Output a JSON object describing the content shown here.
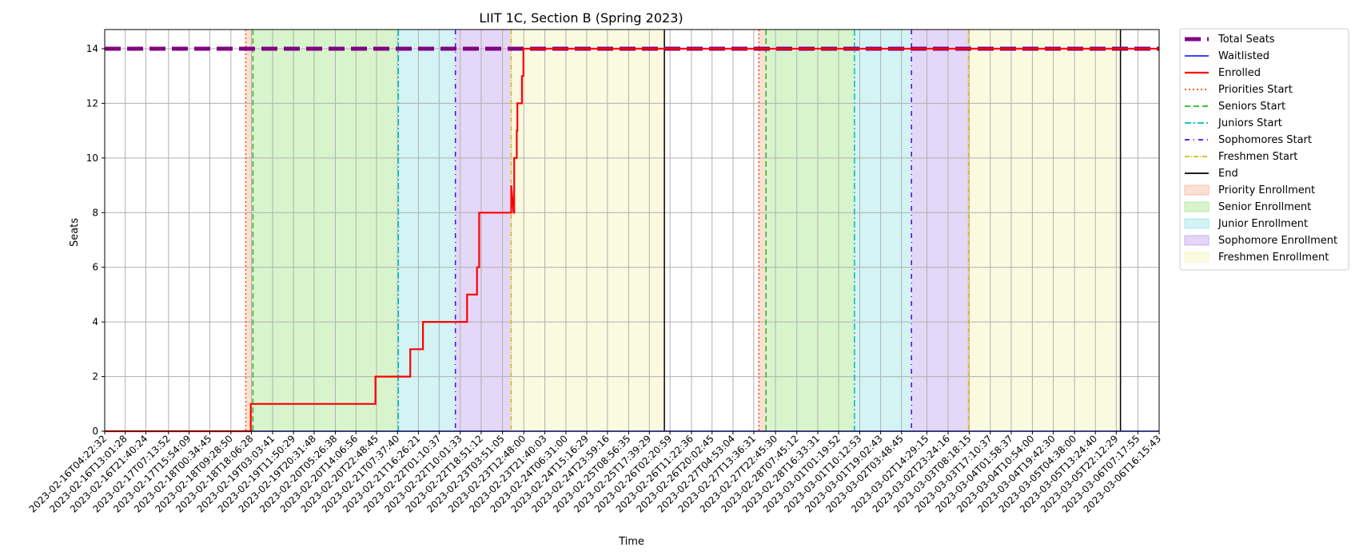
{
  "chart_data": {
    "type": "line",
    "title": "LIIT 1C, Section B (Spring 2023)",
    "xlabel": "Time",
    "ylabel": "Seats",
    "ylim": [
      0,
      14.7
    ],
    "yticks": [
      0,
      2,
      4,
      6,
      8,
      10,
      12,
      14
    ],
    "x_range": [
      "2023-02-16T04:22:32",
      "2023-03-06T16:15:43"
    ],
    "xtick_labels": [
      "2023-02-16T04:22:32",
      "2023-02-16T13:01:28",
      "2023-02-16T21:40:24",
      "2023-02-17T07:13:52",
      "2023-02-17T15:54:09",
      "2023-02-18T00:34:45",
      "2023-02-18T09:28:50",
      "2023-02-18T18:06:28",
      "2023-02-19T03:03:41",
      "2023-02-19T11:50:29",
      "2023-02-19T20:31:48",
      "2023-02-20T05:26:38",
      "2023-02-20T14:06:56",
      "2023-02-20T22:48:45",
      "2023-02-21T07:37:40",
      "2023-02-21T16:26:21",
      "2023-02-22T01:10:37",
      "2023-02-22T10:01:33",
      "2023-02-22T18:51:12",
      "2023-02-23T03:51:05",
      "2023-02-23T12:48:00",
      "2023-02-23T21:40:03",
      "2023-02-24T06:31:00",
      "2023-02-24T15:16:29",
      "2023-02-24T23:59:16",
      "2023-02-25T08:56:35",
      "2023-02-25T17:39:29",
      "2023-02-26T02:20:59",
      "2023-02-26T11:22:36",
      "2023-02-26T20:02:45",
      "2023-02-27T04:53:04",
      "2023-02-27T13:36:31",
      "2023-02-27T22:45:30",
      "2023-02-28T07:45:12",
      "2023-02-28T16:33:31",
      "2023-03-01T01:19:52",
      "2023-03-01T10:12:53",
      "2023-03-01T19:02:43",
      "2023-03-02T03:48:45",
      "2023-03-02T14:29:15",
      "2023-03-02T23:24:16",
      "2023-03-03T08:18:15",
      "2023-03-03T17:10:37",
      "2023-03-04T01:58:37",
      "2023-03-04T10:54:00",
      "2023-03-04T19:42:30",
      "2023-03-05T04:38:00",
      "2023-03-05T13:24:40",
      "2023-03-05T22:12:29",
      "2023-03-06T07:17:55",
      "2023-03-06T16:15:43"
    ],
    "series": [
      {
        "name": "Total Seats",
        "color": "#800080",
        "style": "dashed",
        "value": 14
      },
      {
        "name": "Waitlisted",
        "color": "#0000ff",
        "style": "solid",
        "value": 0
      },
      {
        "name": "Enrolled",
        "color": "#ff0000",
        "style": "step",
        "points": [
          [
            "2023-02-16T04:22:32",
            0
          ],
          [
            "2023-02-18T17:51:00",
            0
          ],
          [
            "2023-02-18T17:51:00",
            1
          ],
          [
            "2023-02-20T22:20:00",
            1
          ],
          [
            "2023-02-20T22:20:00",
            2
          ],
          [
            "2023-02-21T13:00:00",
            2
          ],
          [
            "2023-02-21T13:00:00",
            3
          ],
          [
            "2023-02-21T18:20:00",
            3
          ],
          [
            "2023-02-21T18:20:00",
            4
          ],
          [
            "2023-02-22T12:55:00",
            4
          ],
          [
            "2023-02-22T12:55:00",
            5
          ],
          [
            "2023-02-22T17:05:00",
            5
          ],
          [
            "2023-02-22T17:05:00",
            6
          ],
          [
            "2023-02-22T18:00:00",
            6
          ],
          [
            "2023-02-22T18:00:00",
            8
          ],
          [
            "2023-02-23T07:30:00",
            8
          ],
          [
            "2023-02-23T07:30:00",
            9
          ],
          [
            "2023-02-23T08:30:00",
            8
          ],
          [
            "2023-02-23T08:45:00",
            8
          ],
          [
            "2023-02-23T08:45:00",
            10
          ],
          [
            "2023-02-23T09:50:00",
            10
          ],
          [
            "2023-02-23T09:50:00",
            11
          ],
          [
            "2023-02-23T10:05:00",
            11
          ],
          [
            "2023-02-23T10:05:00",
            12
          ],
          [
            "2023-02-23T12:00:00",
            12
          ],
          [
            "2023-02-23T12:00:00",
            13
          ],
          [
            "2023-02-23T12:40:00",
            13
          ],
          [
            "2023-02-23T12:40:00",
            14
          ],
          [
            "2023-03-06T16:15:43",
            14
          ]
        ]
      }
    ],
    "periods": [
      {
        "name": "Priority Enrollment",
        "color": "#f4a582",
        "start": "2023-02-18T15:45:00",
        "end": "2023-02-18T18:45:00"
      },
      {
        "name": "Senior Enrollment",
        "color": "#90e070",
        "start": "2023-02-18T18:45:00",
        "end": "2023-02-21T08:00:00"
      },
      {
        "name": "Junior Enrollment",
        "color": "#80dce0",
        "start": "2023-02-21T08:00:00",
        "end": "2023-02-22T08:00:00"
      },
      {
        "name": "Sophomore Enrollment",
        "color": "#b28ce8",
        "start": "2023-02-22T08:00:00",
        "end": "2023-02-23T07:30:00"
      },
      {
        "name": "Freshmen Enrollment",
        "color": "#f0f0a8",
        "start": "2023-02-23T07:30:00",
        "end": "2023-02-25T23:59:00"
      },
      {
        "name": "Priority Enrollment",
        "color": "#f4a582",
        "start": "2023-02-27T15:45:00",
        "end": "2023-02-27T18:45:00"
      },
      {
        "name": "Senior Enrollment",
        "color": "#90e070",
        "start": "2023-02-27T18:45:00",
        "end": "2023-03-01T08:00:00"
      },
      {
        "name": "Junior Enrollment",
        "color": "#80dce0",
        "start": "2023-03-01T08:00:00",
        "end": "2023-03-02T08:00:00"
      },
      {
        "name": "Sophomore Enrollment",
        "color": "#b28ce8",
        "start": "2023-03-02T08:00:00",
        "end": "2023-03-03T08:00:00"
      },
      {
        "name": "Freshmen Enrollment",
        "color": "#f0f0a8",
        "start": "2023-03-03T08:00:00",
        "end": "2023-03-05T23:59:00"
      }
    ],
    "markers": [
      {
        "name": "Priorities Start",
        "color": "#ff4500",
        "dash": "2,3",
        "times": [
          "2023-02-18T15:45:00",
          "2023-02-27T15:45:00"
        ]
      },
      {
        "name": "Seniors Start",
        "color": "#22bb22",
        "dash": "7,4",
        "times": [
          "2023-02-18T18:45:00",
          "2023-02-27T18:45:00"
        ]
      },
      {
        "name": "Juniors Start",
        "color": "#00bbbb",
        "dash": "8,3,2,3",
        "times": [
          "2023-02-21T08:00:00",
          "2023-03-01T08:00:00"
        ]
      },
      {
        "name": "Sophomores Start",
        "color": "#5500ee",
        "dash": "6,5,1,5",
        "times": [
          "2023-02-22T08:00:00",
          "2023-03-02T08:00:00"
        ]
      },
      {
        "name": "Freshmen Start",
        "color": "#ddbb00",
        "dash": "6,2,1,2",
        "times": [
          "2023-02-23T07:30:00",
          "2023-03-03T08:00:00"
        ]
      },
      {
        "name": "End",
        "color": "#000000",
        "dash": "",
        "times": [
          "2023-02-25T23:59:00",
          "2023-03-05T23:59:00"
        ]
      }
    ],
    "legend_position": "outside-right",
    "grid": true
  }
}
